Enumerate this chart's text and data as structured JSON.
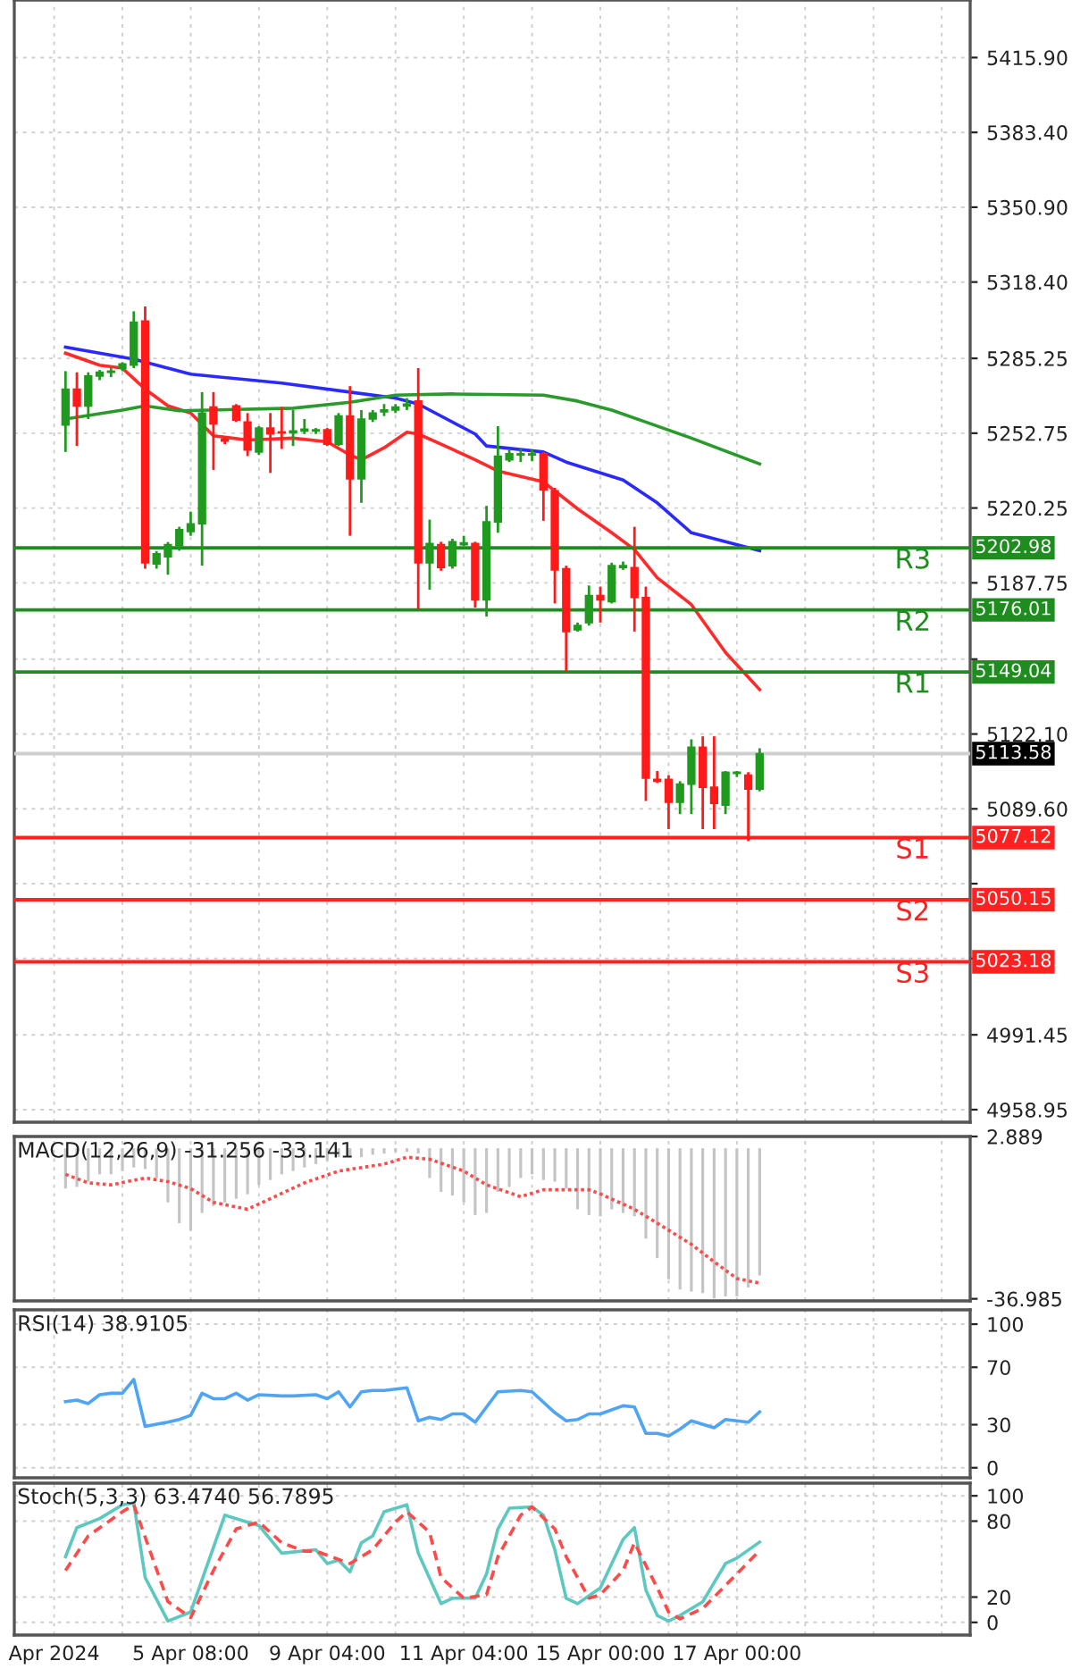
{
  "chart_data": [
    {
      "type": "candlestick",
      "categories": [
        null,
        null,
        null,
        null,
        null,
        null,
        null,
        null,
        null,
        null,
        null,
        null,
        null,
        null,
        null,
        null,
        null,
        null,
        null,
        null,
        null,
        null,
        null,
        null,
        null,
        null,
        null,
        null,
        null,
        null,
        null,
        null,
        null,
        null,
        null,
        null,
        null,
        null,
        null,
        null,
        null,
        null,
        null,
        null,
        null,
        null,
        null,
        null,
        null,
        null,
        null,
        null,
        null,
        null,
        null,
        null,
        null,
        null,
        null,
        null,
        null,
        null,
        null,
        null,
        null,
        null,
        null,
        null,
        null,
        null,
        null,
        null,
        null,
        null,
        null,
        null,
        null,
        null,
        null,
        null,
        null,
        null,
        null,
        null
      ],
      "ohlc": [
        null,
        null,
        null,
        null,
        [
          5256.3,
          5279.7,
          5244.6,
          5271.9
        ],
        [
          5271.9,
          5279.2,
          5247.2,
          5264.6
        ],
        [
          5264.6,
          5279.2,
          5258.9,
          5277.6
        ],
        [
          5277.6,
          5280.2,
          5275.8,
          5279.2
        ],
        [
          5279.2,
          5281.0,
          5277.1,
          5279.7
        ],
        [
          5281.0,
          5283.6,
          5279.7,
          5282.8
        ],
        [
          5282.3,
          5305.7,
          5281.0,
          5301.0
        ],
        [
          5301.5,
          5307.8,
          5193.9,
          5196.5
        ],
        [
          5196.0,
          5201.5,
          5193.9,
          5200.4
        ],
        [
          5199.1,
          5205.5,
          5191.3,
          5204.3
        ],
        [
          5203.8,
          5212.1,
          5201.7,
          5210.8
        ],
        [
          5210.0,
          5218.6,
          5208.2,
          5213.4
        ],
        [
          5213.4,
          5270.6,
          5195.2,
          5261.5
        ],
        [
          5264.1,
          5270.6,
          5236.8,
          5256.8
        ],
        [
          5250.1,
          5251.1,
          5248.0,
          5249.3
        ],
        [
          5264.6,
          5265.4,
          5257.6,
          5258.4
        ],
        [
          5257.6,
          5261.5,
          5242.8,
          5245.4
        ],
        [
          5244.6,
          5255.8,
          5243.3,
          5255.0
        ],
        [
          5255.0,
          5261.5,
          5235.5,
          5252.4
        ],
        [
          5253.2,
          5264.1,
          5245.9,
          5252.9
        ],
        [
          5252.9,
          5262.8,
          5247.2,
          5253.7
        ],
        [
          5253.7,
          5258.9,
          5252.4,
          5254.5
        ],
        [
          5253.7,
          5255.0,
          5252.4,
          5254.2
        ],
        [
          5254.2,
          5255.0,
          5247.2,
          5248.0
        ],
        [
          5248.0,
          5261.5,
          5247.2,
          5260.2
        ],
        [
          5260.2,
          5273.2,
          5208.2,
          5232.9
        ],
        [
          5232.9,
          5262.8,
          5222.5,
          5258.9
        ],
        [
          5258.9,
          5262.8,
          5257.6,
          5261.5
        ],
        [
          5262.0,
          5265.4,
          5260.2,
          5262.8
        ],
        [
          5262.8,
          5265.4,
          5261.5,
          5264.1
        ],
        [
          5264.6,
          5268.0,
          5262.8,
          5265.4
        ],
        [
          5266.7,
          5281.0,
          5176.2,
          5196.5
        ],
        [
          5196.5,
          5215.2,
          5184.8,
          5204.8
        ],
        [
          5204.3,
          5205.6,
          5193.0,
          5194.4
        ],
        [
          5195.2,
          5206.9,
          5193.9,
          5205.6
        ],
        [
          5204.3,
          5208.2,
          5203.8,
          5205.1
        ],
        [
          5204.8,
          5205.6,
          5177.0,
          5180.4
        ],
        [
          5180.4,
          5221.2,
          5173.1,
          5214.2
        ],
        [
          5214.2,
          5255.8,
          5209.5,
          5242.8
        ],
        [
          5241.2,
          5245.9,
          5240.2,
          5243.8
        ],
        [
          5243.3,
          5245.9,
          5240.2,
          5243.8
        ],
        [
          5243.3,
          5245.4,
          5240.7,
          5243.8
        ],
        [
          5243.8,
          5244.6,
          5214.7,
          5228.2
        ],
        [
          5227.7,
          5229.0,
          5178.8,
          5193.4
        ],
        [
          5193.9,
          5195.2,
          5149.2,
          5166.6
        ],
        [
          5167.4,
          5170.5,
          5166.6,
          5169.2
        ],
        [
          5170.5,
          5186.6,
          5169.2,
          5182.2
        ],
        [
          5182.2,
          5186.1,
          5170.5,
          5180.4
        ],
        [
          5179.6,
          5196.5,
          5178.8,
          5195.2
        ],
        [
          5194.4,
          5197.0,
          5193.4,
          5195.2
        ],
        [
          5194.4,
          5212.1,
          5166.6,
          5181.4
        ],
        [
          5181.4,
          5186.1,
          5093.0,
          5102.9
        ],
        [
          5102.4,
          5106.0,
          5100.8,
          5101.6
        ],
        [
          5102.4,
          5104.2,
          5080.8,
          5092.5
        ],
        [
          5092.5,
          5101.6,
          5087.3,
          5100.3
        ],
        [
          5100.3,
          5119.8,
          5087.3,
          5116.4
        ],
        [
          5116.4,
          5121.1,
          5080.8,
          5099.0
        ],
        [
          5099.0,
          5121.1,
          5080.8,
          5092.0
        ],
        [
          5091.2,
          5106.0,
          5087.3,
          5105.5
        ],
        [
          5105.0,
          5106.0,
          5103.4,
          5105.5
        ],
        [
          5104.2,
          5105.5,
          5075.6,
          5098.2
        ],
        [
          5098.2,
          5115.9,
          5097.2,
          5113.58
        ],
        null,
        null,
        null,
        null,
        null,
        null,
        null,
        null,
        null,
        null,
        null,
        null,
        null,
        null,
        null,
        null,
        null,
        null
      ],
      "colors": [
        null,
        null,
        null,
        null,
        "#1f9a1f",
        "#ff1a1a",
        "#1f9a1f",
        "#1f9a1f",
        "#1f9a1f",
        "#1f9a1f",
        "#1f9a1f",
        "#ff1a1a",
        "#1f9a1f",
        "#1f9a1f",
        "#1f9a1f",
        "#1f9a1f",
        "#1f9a1f",
        "#ff1a1a",
        "#ff1a1a",
        "#ff1a1a",
        "#ff1a1a",
        "#1f9a1f",
        "#ff1a1a",
        "#ff1a1a",
        "#1f9a1f",
        "#1f9a1f",
        "#1f9a1f",
        "#ff1a1a",
        "#1f9a1f",
        "#ff1a1a",
        "#1f9a1f",
        "#1f9a1f",
        "#1f9a1f",
        "#1f9a1f",
        "#1f9a1f",
        "#ff1a1a",
        "#1f9a1f",
        "#ff1a1a",
        "#1f9a1f",
        "#1f9a1f",
        "#ff1a1a",
        "#1f9a1f",
        "#1f9a1f",
        "#1f9a1f",
        "#1f9a1f",
        "#1f9a1f",
        "#ff1a1a",
        "#ff1a1a",
        "#ff1a1a",
        "#1f9a1f",
        "#1f9a1f",
        "#ff1a1a",
        "#1f9a1f",
        "#1f9a1f",
        "#ff1a1a",
        "#ff1a1a",
        "#ff1a1a",
        "#ff1a1a",
        "#1f9a1f",
        "#1f9a1f",
        "#ff1a1a",
        "#ff1a1a",
        "#1f9a1f",
        "#1f9a1f",
        "#ff1a1a",
        "#1f9a1f",
        null,
        null,
        null,
        null,
        null,
        null,
        null,
        null,
        null,
        null,
        null,
        null,
        null,
        null,
        null,
        null,
        null,
        null
      ],
      "series": [
        {
          "type": "line",
          "color": "#ff2a2a",
          "values": [
            null,
            null,
            null,
            null,
            5287.5,
            null,
            null,
            5282.3,
            null,
            5281.0,
            null,
            5271.9,
            null,
            5264.6,
            null,
            5261.5,
            null,
            5251.6,
            null,
            null,
            5249.8,
            null,
            null,
            null,
            5250.6,
            null,
            null,
            5249.0,
            null,
            5243.3,
            5241.2,
            null,
            5246.4,
            null,
            5253.2,
            5252.4,
            null,
            5248.0,
            null,
            null,
            5241.2,
            null,
            5236.3,
            null,
            null,
            null,
            5231.6,
            null,
            null,
            5219.9,
            null,
            null,
            5209.5,
            null,
            5202.2,
            null,
            5190.0,
            null,
            null,
            5178.3,
            null,
            null,
            5157.5,
            null,
            null,
            5141.4,
            null,
            null,
            null,
            null,
            null,
            null,
            null,
            null,
            null,
            null,
            null,
            null,
            null,
            null,
            null,
            null,
            null,
            null
          ]
        },
        {
          "type": "line",
          "color": "#2a2aff",
          "values": [
            null,
            null,
            null,
            null,
            5290.1,
            null,
            null,
            null,
            null,
            null,
            5284.9,
            null,
            null,
            null,
            null,
            5278.4,
            null,
            null,
            null,
            null,
            null,
            null,
            null,
            5274.5,
            null,
            null,
            null,
            null,
            null,
            5270.6,
            null,
            null,
            null,
            5268.0,
            null,
            5265.4,
            null,
            null,
            null,
            null,
            5252.4,
            5247.2,
            null,
            null,
            null,
            null,
            5244.6,
            null,
            5240.2,
            null,
            null,
            null,
            null,
            5232.4,
            null,
            null,
            5222.5,
            null,
            null,
            5209.5,
            null,
            null,
            null,
            null,
            null,
            5201.7,
            null,
            null,
            null,
            null,
            null,
            null,
            null,
            null,
            null,
            null,
            null,
            null,
            null,
            null,
            null,
            null,
            null,
            null
          ]
        },
        {
          "type": "line",
          "color": "#2a9a2a",
          "values": [
            null,
            null,
            null,
            null,
            5258.9,
            null,
            null,
            null,
            null,
            5262.8,
            null,
            5264.6,
            null,
            null,
            5262.5,
            null,
            null,
            null,
            null,
            null,
            null,
            null,
            null,
            null,
            5263.6,
            null,
            null,
            null,
            null,
            5266.2,
            null,
            null,
            null,
            5269.3,
            null,
            null,
            null,
            null,
            5269.8,
            null,
            null,
            null,
            null,
            null,
            null,
            null,
            5269.3,
            null,
            null,
            5266.7,
            null,
            null,
            5262.8,
            null,
            null,
            5257.6,
            null,
            null,
            null,
            5250.6,
            null,
            null,
            null,
            null,
            null,
            5239.4,
            null,
            null,
            null,
            null,
            null,
            null,
            null,
            null,
            null,
            null,
            null,
            null,
            null,
            null,
            null,
            null,
            null,
            null
          ]
        }
      ],
      "ref_lines": [
        {
          "axis": "y",
          "value": 5202.98,
          "label": "5202.98",
          "color": "#1e8c1e"
        },
        {
          "axis": "y",
          "value": 5176.01,
          "label": "5176.01",
          "color": "#1e8c1e"
        },
        {
          "axis": "y",
          "value": 5149.04,
          "label": "5149.04",
          "color": "#1e8c1e"
        },
        {
          "axis": "y",
          "value": 5113.58,
          "label": "5113.58",
          "color": "#cfcfcf"
        },
        {
          "axis": "y",
          "value": 5077.12,
          "label": "5077.12",
          "color": "#ff2020"
        },
        {
          "axis": "y",
          "value": 5050.15,
          "label": "5050.15",
          "color": "#ff2020"
        },
        {
          "axis": "y",
          "value": 5023.18,
          "label": "5023.18",
          "color": "#ff2020"
        }
      ],
      "annotations": [
        {
          "text": "R3",
          "y": 5202.98
        },
        {
          "text": "R2",
          "y": 5176.01
        },
        {
          "text": "R1",
          "y": 5149.04
        },
        {
          "text": "S1",
          "y": 5077.12
        },
        {
          "text": "S2",
          "y": 5050.15
        },
        {
          "text": "S3",
          "y": 5023.18
        }
      ],
      "ylim": [
        4953.5,
        5440.9
      ],
      "yticks": [
        {
          "value": 5415.9,
          "label": "5415.90"
        },
        {
          "value": 5383.4,
          "label": "5383.40"
        },
        {
          "value": 5350.9,
          "label": "5350.90"
        },
        {
          "value": 5318.4,
          "label": "5318.40"
        },
        {
          "value": 5285.25,
          "label": "5285.25"
        },
        {
          "value": 5252.75,
          "label": "5252.75"
        },
        {
          "value": 5220.25,
          "label": "5220.25"
        },
        {
          "value": 5187.75,
          "label": "5187.75"
        },
        {
          "value": 5154.6,
          "label": null
        },
        {
          "value": 5122.1,
          "label": "5122.10"
        },
        {
          "value": 5089.6,
          "label": "5089.60"
        },
        {
          "value": 5057.1,
          "label": null
        },
        {
          "value": 5024.6,
          "label": null
        },
        {
          "value": 4991.45,
          "label": "4991.45"
        },
        {
          "value": 4958.95,
          "label": "4958.95"
        }
      ],
      "grid": true,
      "tick_labels": "y"
    },
    {
      "type": "bar",
      "title": "MACD(12,26,9) -31.256 -33.141",
      "categories": [
        null,
        null,
        null,
        null,
        null,
        null,
        null,
        null,
        null,
        null,
        null,
        null,
        null,
        null,
        null,
        null,
        null,
        null,
        null,
        null,
        null,
        null,
        null,
        null,
        null,
        null,
        null,
        null,
        null,
        null,
        null,
        null,
        null,
        null,
        null,
        null,
        null,
        null,
        null,
        null,
        null,
        null,
        null,
        null,
        null,
        null,
        null,
        null,
        null,
        null,
        null,
        null,
        null,
        null,
        null,
        null,
        null,
        null,
        null,
        null,
        null,
        null,
        null,
        null,
        null,
        null,
        null,
        null,
        null,
        null,
        null,
        null,
        null,
        null,
        null,
        null,
        null,
        null,
        null,
        null,
        null,
        null,
        null,
        null
      ],
      "series": [
        {
          "type": "bar",
          "color": "#c4c4c4",
          "values": [
            null,
            null,
            null,
            null,
            -9.9,
            -9.5,
            -8.2,
            -6.4,
            -6.4,
            -5.6,
            -4.7,
            -5.1,
            -7.3,
            -13.3,
            -18.4,
            -20.2,
            -15.9,
            -14.2,
            -13.3,
            -12.4,
            -11.3,
            -9.0,
            -7.8,
            -6.4,
            -5.6,
            -4.7,
            -3.9,
            -3.0,
            -2.2,
            -2.2,
            -2.2,
            -1.6,
            -1.3,
            -0.9,
            -0.9,
            -1.3,
            -7.3,
            -10.7,
            -11.6,
            -13.3,
            -16.4,
            -15.9,
            -10.7,
            -9.5,
            -7.3,
            -6.4,
            -7.8,
            -8.2,
            -9.9,
            -15.0,
            -16.4,
            -16.7,
            -15.0,
            -15.9,
            -16.7,
            -22.2,
            -27.0,
            -32.2,
            -34.7,
            -35.2,
            -35.6,
            -36.9,
            -36.4,
            -36.4,
            -34.2,
            -31.256,
            null,
            null,
            null,
            null,
            null,
            null,
            null,
            null,
            null,
            null,
            null,
            null,
            null,
            null,
            null,
            null,
            null,
            null
          ]
        },
        {
          "type": "line",
          "color": "#ff4a4a",
          "line_style": "dotted",
          "values": [
            null,
            null,
            null,
            null,
            -6.4,
            null,
            -8.5,
            null,
            -9.0,
            null,
            null,
            -7.3,
            null,
            -8.2,
            null,
            -9.9,
            null,
            -13.3,
            null,
            null,
            -15.0,
            null,
            -12.4,
            null,
            null,
            -8.5,
            null,
            null,
            -5.6,
            null,
            null,
            null,
            -3.9,
            null,
            -2.2,
            null,
            -2.7,
            null,
            null,
            -5.6,
            null,
            -9.0,
            null,
            null,
            -11.9,
            null,
            -10.2,
            null,
            null,
            null,
            -10.2,
            -11.2,
            null,
            null,
            -15.0,
            null,
            -18.4,
            null,
            null,
            -23.6,
            null,
            -27.9,
            null,
            -32.0,
            null,
            -33.141,
            null,
            null,
            null,
            null,
            null,
            null,
            null,
            null,
            null,
            null,
            null,
            null,
            null,
            null,
            null,
            null,
            null,
            null
          ]
        }
      ],
      "ylim": [
        -37.5,
        2.889
      ],
      "yticks": [
        2.889,
        -36.985
      ],
      "grid": "x",
      "tick_labels": "y"
    },
    {
      "type": "line",
      "title": "RSI(14) 38.9105",
      "categories": [
        null,
        null,
        null,
        null,
        null,
        null,
        null,
        null,
        null,
        null,
        null,
        null,
        null,
        null,
        null,
        null,
        null,
        null,
        null,
        null,
        null,
        null,
        null,
        null,
        null,
        null,
        null,
        null,
        null,
        null,
        null,
        null,
        null,
        null,
        null,
        null,
        null,
        null,
        null,
        null,
        null,
        null,
        null,
        null,
        null,
        null,
        null,
        null,
        null,
        null,
        null,
        null,
        null,
        null,
        null,
        null,
        null,
        null,
        null,
        null,
        null,
        null,
        null,
        null,
        null,
        null,
        null,
        null,
        null,
        null,
        null,
        null,
        null,
        null,
        null,
        null,
        null,
        null,
        null,
        null,
        null,
        null,
        null,
        null
      ],
      "series": [
        {
          "color": "#4ea4f5",
          "values": [
            null,
            null,
            null,
            null,
            46.1,
            47.1,
            44.7,
            50.9,
            51.9,
            51.9,
            61.5,
            28.8,
            30.3,
            31.7,
            33.6,
            36.5,
            51.9,
            48.1,
            48.1,
            51.9,
            47.1,
            50.9,
            null,
            50.0,
            50.0,
            null,
            50.9,
            48.1,
            52.9,
            42.3,
            52.9,
            53.8,
            53.8,
            null,
            55.7,
            32.7,
            35.1,
            33.6,
            37.5,
            37.5,
            31.7,
            42.3,
            52.9,
            null,
            53.8,
            52.9,
            null,
            38.4,
            32.7,
            33.6,
            37.5,
            37.5,
            null,
            43.2,
            42.3,
            24.0,
            24.0,
            22.1,
            26.9,
            32.7,
            null,
            27.9,
            33.6,
            32.7,
            31.7,
            38.9105,
            null,
            null,
            null,
            null,
            null,
            null,
            null,
            null,
            null,
            null,
            null,
            null,
            null,
            null,
            null,
            null,
            null,
            null
          ]
        }
      ],
      "ylim": [
        -7,
        110
      ],
      "yticks": [
        0,
        30,
        70,
        100
      ],
      "grid": true,
      "tick_labels": "y"
    },
    {
      "type": "line",
      "title": "Stoch(5,3,3) 63.4740 56.7895",
      "categories": [
        null,
        null,
        null,
        "Apr 2024",
        null,
        null,
        null,
        null,
        null,
        null,
        null,
        null,
        null,
        null,
        null,
        "5 Apr 08:00",
        null,
        null,
        null,
        null,
        null,
        null,
        null,
        null,
        null,
        null,
        null,
        "9 Apr 04:00",
        null,
        null,
        null,
        null,
        null,
        null,
        null,
        null,
        null,
        null,
        null,
        "11 Apr 04:00",
        null,
        null,
        null,
        null,
        null,
        null,
        null,
        null,
        null,
        null,
        null,
        "15 Apr 00:00",
        null,
        null,
        null,
        null,
        null,
        null,
        null,
        null,
        null,
        null,
        null,
        "17 Apr 00:00",
        null,
        null,
        null,
        null,
        null,
        null,
        null,
        null,
        null,
        null,
        null,
        null,
        null,
        null,
        null,
        null,
        null,
        null,
        null,
        null
      ],
      "series": [
        {
          "color": "#5cc8c0",
          "values": [
            null,
            null,
            null,
            null,
            51.9,
            74.9,
            null,
            82.0,
            null,
            92.9,
            94.5,
            35.5,
            null,
            1.0,
            null,
            8.2,
            null,
            null,
            84.7,
            null,
            null,
            76.5,
            null,
            54.7,
            null,
            null,
            57.4,
            46.5,
            49.2,
            39.9,
            62.9,
            68.3,
            87.4,
            null,
            92.9,
            54.7,
            null,
            14.8,
            19.1,
            null,
            19.1,
            38.3,
            73.8,
            90.2,
            null,
            91.3,
            84.7,
            57.4,
            19.1,
            14.8,
            null,
            27.3,
            null,
            65.6,
            74.9,
            25.7,
            5.5,
            1.0,
            5.5,
            null,
            16.3,
            null,
            46.5,
            50.8,
            null,
            63.474,
            null,
            null,
            null,
            null,
            null,
            null,
            null,
            null,
            null,
            null,
            null,
            null,
            null,
            null,
            null,
            null,
            null,
            null
          ]
        },
        {
          "color": "#ff4a4a",
          "line_style": "dashed",
          "values": [
            null,
            null,
            null,
            null,
            41.0,
            null,
            68.3,
            null,
            null,
            87.4,
            92.9,
            null,
            null,
            16.4,
            null,
            3.8,
            null,
            41.0,
            null,
            73.8,
            null,
            79.3,
            null,
            62.9,
            null,
            56.3,
            56.3,
            null,
            null,
            46.5,
            null,
            57.4,
            null,
            79.3,
            87.4,
            null,
            71.1,
            35.5,
            null,
            19.1,
            null,
            21.9,
            51.9,
            null,
            84.7,
            91.3,
            null,
            73.8,
            51.9,
            null,
            19.1,
            21.9,
            null,
            41.0,
            62.9,
            null,
            27.3,
            8.2,
            2.8,
            null,
            11.0,
            null,
            null,
            38.3,
            null,
            56.7895,
            null,
            null,
            null,
            null,
            null,
            null,
            null,
            null,
            null,
            null,
            null,
            null,
            null,
            null,
            null,
            null,
            null,
            null
          ]
        }
      ],
      "ylim": [
        -10,
        110
      ],
      "yticks": [
        0,
        20,
        80,
        100
      ],
      "grid": true
    }
  ]
}
